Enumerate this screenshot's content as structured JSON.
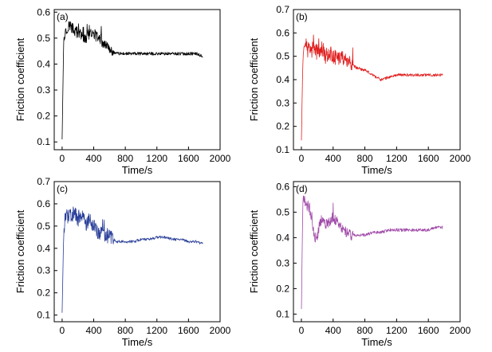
{
  "chart_data": [
    {
      "type": "line",
      "panel_label": "(a)",
      "series": [
        {
          "name": "a",
          "color": "#000000",
          "x": [
            0,
            20,
            60,
            100,
            150,
            200,
            250,
            300,
            350,
            400,
            450,
            500,
            550,
            600,
            700,
            800,
            900,
            1000,
            1100,
            1200,
            1300,
            1400,
            1500,
            1600,
            1700,
            1780
          ],
          "y": [
            0.11,
            0.5,
            0.54,
            0.55,
            0.53,
            0.52,
            0.51,
            0.5,
            0.52,
            0.51,
            0.5,
            0.49,
            0.47,
            0.45,
            0.44,
            0.44,
            0.44,
            0.44,
            0.44,
            0.44,
            0.44,
            0.44,
            0.44,
            0.44,
            0.44,
            0.43
          ]
        }
      ],
      "xlabel": "Time/s",
      "ylabel": "Friction coefficient",
      "xlim": [
        -100,
        2000
      ],
      "ylim": [
        0.07,
        0.61
      ],
      "xticks": [
        0,
        400,
        800,
        1200,
        1600,
        2000
      ],
      "yticks": [
        0.1,
        0.2,
        0.3,
        0.4,
        0.5,
        0.6
      ],
      "xtick_labels": [
        "0",
        "400",
        "800",
        "1200",
        "1600",
        "2000"
      ],
      "ytick_labels": [
        "0.1",
        "0.2",
        "0.3",
        "0.4",
        "0.5",
        "0.6"
      ]
    },
    {
      "type": "line",
      "panel_label": "(b)",
      "series": [
        {
          "name": "b",
          "color": "#e02020",
          "x": [
            0,
            20,
            60,
            100,
            150,
            200,
            250,
            300,
            350,
            400,
            450,
            500,
            550,
            600,
            700,
            800,
            900,
            950,
            1000,
            1100,
            1200,
            1300,
            1400,
            1500,
            1600,
            1700,
            1780
          ],
          "y": [
            0.14,
            0.5,
            0.54,
            0.52,
            0.53,
            0.52,
            0.54,
            0.5,
            0.52,
            0.5,
            0.49,
            0.5,
            0.49,
            0.47,
            0.45,
            0.44,
            0.42,
            0.41,
            0.4,
            0.41,
            0.42,
            0.42,
            0.42,
            0.42,
            0.42,
            0.42,
            0.42
          ]
        }
      ],
      "xlabel": "Time/s",
      "ylabel": "Friction coefficient",
      "xlim": [
        -100,
        2000
      ],
      "ylim": [
        0.1,
        0.7
      ],
      "xticks": [
        0,
        400,
        800,
        1200,
        1600,
        2000
      ],
      "yticks": [
        0.1,
        0.2,
        0.3,
        0.4,
        0.5,
        0.6,
        0.7
      ],
      "xtick_labels": [
        "0",
        "400",
        "800",
        "1200",
        "1600",
        "2000"
      ],
      "ytick_labels": [
        "0.1",
        "0.2",
        "0.3",
        "0.4",
        "0.5",
        "0.6",
        "0.7"
      ]
    },
    {
      "type": "line",
      "panel_label": "(c)",
      "series": [
        {
          "name": "c",
          "color": "#2a3f9a",
          "x": [
            0,
            20,
            60,
            100,
            150,
            200,
            250,
            300,
            350,
            400,
            450,
            500,
            550,
            600,
            700,
            800,
            900,
            1000,
            1100,
            1200,
            1300,
            1400,
            1500,
            1600,
            1700,
            1780
          ],
          "y": [
            0.11,
            0.48,
            0.54,
            0.55,
            0.56,
            0.53,
            0.55,
            0.51,
            0.52,
            0.5,
            0.47,
            0.46,
            0.45,
            0.45,
            0.43,
            0.43,
            0.43,
            0.44,
            0.44,
            0.45,
            0.45,
            0.44,
            0.44,
            0.43,
            0.43,
            0.42
          ]
        }
      ],
      "xlabel": "Time/s",
      "ylabel": "Friction coefficient",
      "xlim": [
        -100,
        2000
      ],
      "ylim": [
        0.07,
        0.7
      ],
      "xticks": [
        0,
        400,
        800,
        1200,
        1600,
        2000
      ],
      "yticks": [
        0.1,
        0.2,
        0.3,
        0.4,
        0.5,
        0.6,
        0.7
      ],
      "xtick_labels": [
        "0",
        "400",
        "800",
        "1200",
        "1600",
        "2000"
      ],
      "ytick_labels": [
        "0.1",
        "0.2",
        "0.3",
        "0.4",
        "0.5",
        "0.6",
        "0.7"
      ]
    },
    {
      "type": "line",
      "panel_label": "(d)",
      "series": [
        {
          "name": "d",
          "color": "#a04aa8",
          "x": [
            0,
            20,
            60,
            100,
            130,
            160,
            200,
            250,
            300,
            350,
            400,
            450,
            500,
            550,
            600,
            700,
            800,
            900,
            1000,
            1100,
            1200,
            1300,
            1400,
            1500,
            1600,
            1700,
            1780
          ],
          "y": [
            0.12,
            0.56,
            0.53,
            0.52,
            0.48,
            0.4,
            0.41,
            0.47,
            0.45,
            0.46,
            0.48,
            0.46,
            0.44,
            0.43,
            0.41,
            0.41,
            0.41,
            0.42,
            0.42,
            0.43,
            0.43,
            0.43,
            0.43,
            0.43,
            0.43,
            0.44,
            0.44
          ]
        }
      ],
      "xlabel": "Time/s",
      "ylabel": "Friction coefficient",
      "xlim": [
        -100,
        2000
      ],
      "ylim": [
        0.07,
        0.62
      ],
      "xticks": [
        0,
        400,
        800,
        1200,
        1600,
        2000
      ],
      "yticks": [
        0.1,
        0.2,
        0.3,
        0.4,
        0.5,
        0.6
      ],
      "xtick_labels": [
        "0",
        "400",
        "800",
        "1200",
        "1600",
        "2000"
      ],
      "ytick_labels": [
        "0.1",
        "0.2",
        "0.3",
        "0.4",
        "0.5",
        "0.6"
      ]
    }
  ]
}
